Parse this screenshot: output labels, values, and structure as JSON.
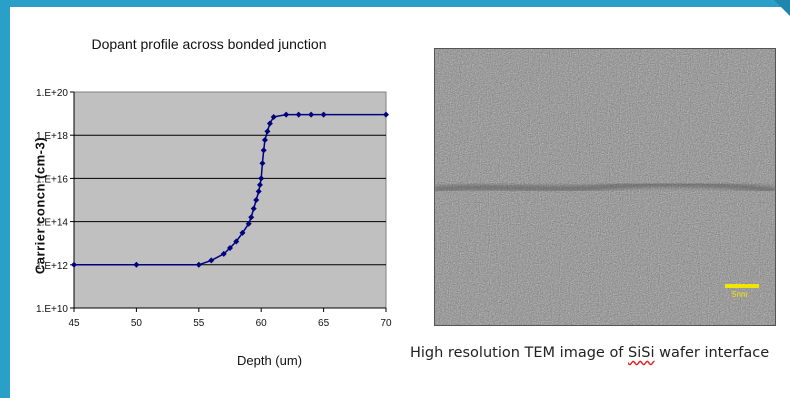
{
  "chart_data": {
    "type": "scatter",
    "title": "Dopant profile across bonded junction",
    "xlabel": "Depth (um)",
    "ylabel": "Carrier concn (cm-3)",
    "xlim": [
      45,
      70
    ],
    "ylim_log10": [
      10,
      20
    ],
    "log_y": true,
    "grid": "horizontal",
    "line_and_markers": true,
    "color": "#000080",
    "x_ticks": [
      "45",
      "50",
      "55",
      "60",
      "65",
      "70"
    ],
    "y_ticks": [
      "1.E+10",
      "1.E+12",
      "1.E+14",
      "1.E+16",
      "1.E+18",
      "1.E+20"
    ],
    "series": [
      {
        "x": [
          45,
          50,
          55,
          56,
          57,
          57.5,
          58,
          58.5,
          59,
          59.2,
          59.4,
          59.6,
          59.8,
          59.9,
          60,
          60.1,
          60.2,
          60.3,
          60.5,
          60.7,
          61,
          62,
          63,
          64,
          65,
          70
        ],
        "y": [
          1000000000000.0,
          1000000000000.0,
          1000000000000.0,
          1600000000000.0,
          3200000000000.0,
          6000000000000.0,
          12000000000000.0,
          30000000000000.0,
          80000000000000.0,
          160000000000000.0,
          400000000000000.0,
          1000000000000000.0,
          2500000000000000.0,
          5000000000000000.0,
          1e+16,
          5e+16,
          2e+17,
          6e+17,
          1.5e+18,
          3.5e+18,
          7e+18,
          9e+18,
          9e+18,
          9e+18,
          9e+18,
          9e+18
        ]
      }
    ]
  },
  "tem": {
    "caption_before": "High resolution TEM image of ",
    "caption_flagged": "SiSi",
    "caption_after": " wafer interface",
    "scale_label": "5nm"
  },
  "colors": {
    "accent": "#2aa0c8",
    "plot_bg": "#c0c0c0",
    "series": "#000080",
    "scale_bar": "#f2e600"
  }
}
